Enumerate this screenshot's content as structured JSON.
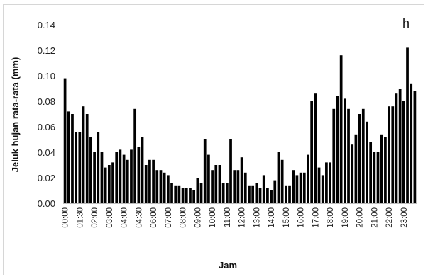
{
  "chart_data": {
    "type": "bar",
    "panel_label": "h",
    "xlabel": "Jam",
    "ylabel": "Jeluk hujan rata-rata  (mm)",
    "ylim": [
      0,
      0.14
    ],
    "yticks": [
      "0.00",
      "0.02",
      "0.04",
      "0.06",
      "0.08",
      "0.10",
      "0.12",
      "0.14"
    ],
    "xtick_labels": [
      "00:00",
      "01:30",
      "02:00",
      "03:00",
      "04:00",
      "04:30",
      "06:00",
      "07:00",
      "08:00",
      "09:00",
      "10:00",
      "11:00",
      "12:00",
      "13:00",
      "14:00",
      "15:00",
      "16:00",
      "17:00",
      "18:00",
      "19:00",
      "20:00",
      "21:00",
      "22:00",
      "23:00"
    ],
    "grid": false,
    "bar_color": "#000000",
    "values": [
      0.098,
      0.072,
      0.07,
      0.056,
      0.056,
      0.076,
      0.07,
      0.052,
      0.04,
      0.056,
      0.04,
      0.028,
      0.03,
      0.032,
      0.04,
      0.042,
      0.038,
      0.034,
      0.042,
      0.074,
      0.044,
      0.052,
      0.03,
      0.034,
      0.034,
      0.026,
      0.026,
      0.024,
      0.022,
      0.016,
      0.014,
      0.014,
      0.012,
      0.012,
      0.012,
      0.01,
      0.02,
      0.016,
      0.05,
      0.038,
      0.026,
      0.03,
      0.03,
      0.016,
      0.016,
      0.05,
      0.026,
      0.026,
      0.036,
      0.024,
      0.014,
      0.014,
      0.016,
      0.012,
      0.022,
      0.012,
      0.01,
      0.018,
      0.04,
      0.034,
      0.014,
      0.014,
      0.026,
      0.022,
      0.024,
      0.024,
      0.038,
      0.08,
      0.086,
      0.028,
      0.022,
      0.032,
      0.032,
      0.074,
      0.084,
      0.116,
      0.082,
      0.074,
      0.046,
      0.054,
      0.07,
      0.074,
      0.064,
      0.048,
      0.04,
      0.04,
      0.054,
      0.052,
      0.076,
      0.076,
      0.086,
      0.09,
      0.08,
      0.122,
      0.094,
      0.088
    ]
  }
}
